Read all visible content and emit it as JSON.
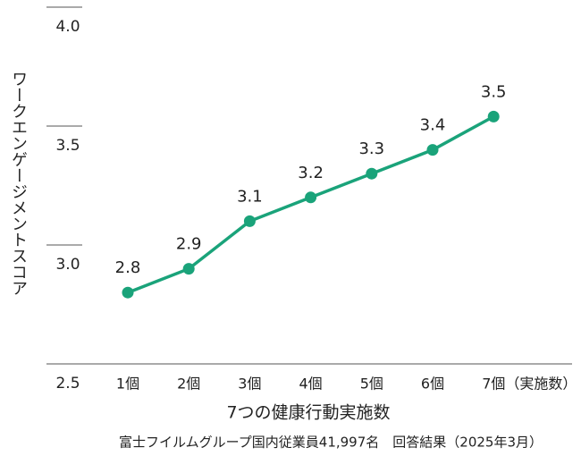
{
  "chart_data": {
    "type": "line",
    "y_label": "ワークエンゲージメントスコア",
    "x_label": "7つの健康行動実施数",
    "note": "富士フイルムグループ国内従業員41,997名　回答結果（2025年3月）",
    "categories": [
      "1個",
      "2個",
      "3個",
      "4個",
      "5個",
      "6個",
      "7個（実施数）"
    ],
    "series": [
      {
        "color": "#1aa37a",
        "values": [
          2.8,
          2.9,
          3.1,
          3.2,
          3.3,
          3.4,
          3.54
        ],
        "value_labels": [
          "2.8",
          "2.9",
          "3.1",
          "3.2",
          "3.3",
          "3.4",
          "3.5"
        ]
      }
    ],
    "ylim": [
      2.5,
      4.0
    ],
    "yticks": [
      2.5,
      {
        "value": 3,
        "label": "3.0"
      },
      3.5,
      {
        "value": 4,
        "label": "4.0"
      }
    ]
  }
}
